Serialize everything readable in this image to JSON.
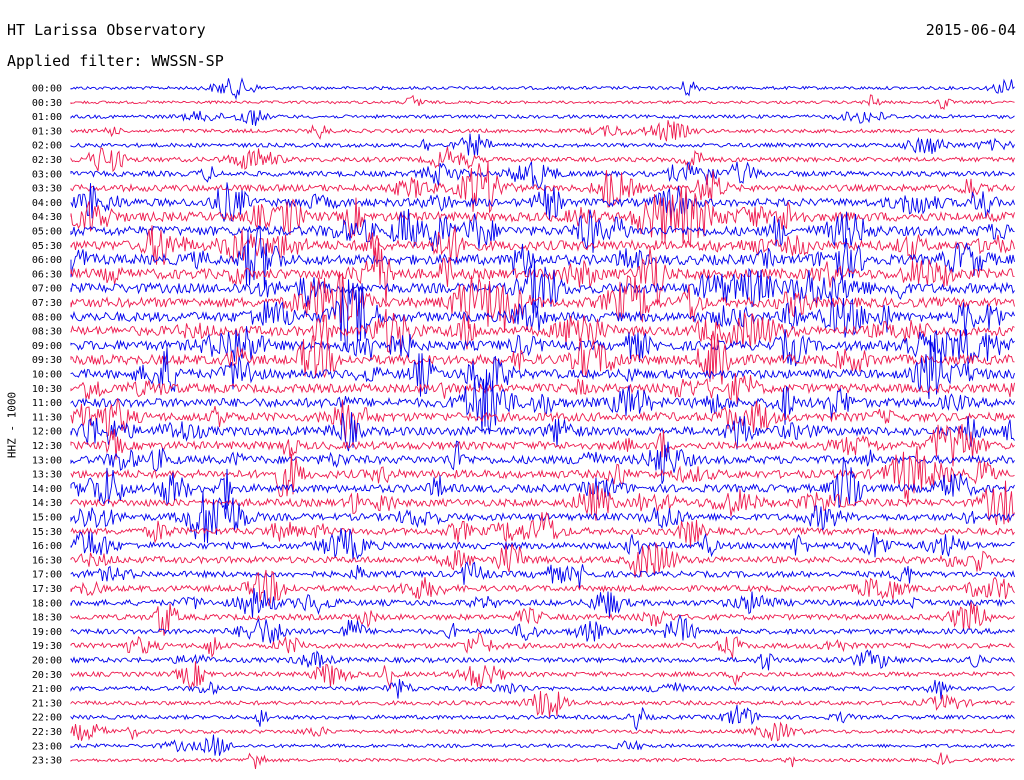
{
  "header": {
    "title": "HT Larissa Observatory",
    "date": "2015-06-04",
    "filter": "Applied filter: WWSSN-SP"
  },
  "chart_data": {
    "type": "line",
    "title": "HT Larissa Observatory",
    "ylabel": "HHZ - 1000",
    "trace_labels": [
      "00:00",
      "00:30",
      "01:00",
      "01:30",
      "02:00",
      "02:30",
      "03:00",
      "03:30",
      "04:00",
      "04:30",
      "05:00",
      "05:30",
      "06:00",
      "06:30",
      "07:00",
      "07:30",
      "08:00",
      "08:30",
      "09:00",
      "09:30",
      "10:00",
      "10:30",
      "11:00",
      "11:30",
      "12:00",
      "12:30",
      "13:00",
      "13:30",
      "14:00",
      "14:30",
      "15:00",
      "15:30",
      "16:00",
      "16:30",
      "17:00",
      "17:30",
      "18:00",
      "18:30",
      "19:00",
      "19:30",
      "20:00",
      "20:30",
      "21:00",
      "21:30",
      "22:00",
      "22:30",
      "23:00",
      "23:30"
    ],
    "activity": [
      0.08,
      0.05,
      0.12,
      0.14,
      0.18,
      0.25,
      0.32,
      0.45,
      0.6,
      0.75,
      0.78,
      0.8,
      0.85,
      0.85,
      0.82,
      0.8,
      0.8,
      0.78,
      0.78,
      0.8,
      0.72,
      0.7,
      0.72,
      0.7,
      0.68,
      0.6,
      0.6,
      0.62,
      0.6,
      0.55,
      0.5,
      0.48,
      0.45,
      0.45,
      0.4,
      0.38,
      0.38,
      0.35,
      0.32,
      0.3,
      0.28,
      0.25,
      0.22,
      0.2,
      0.18,
      0.15,
      0.12,
      0.1
    ],
    "colors": [
      "#0000ee",
      "#ee1a4e"
    ]
  }
}
